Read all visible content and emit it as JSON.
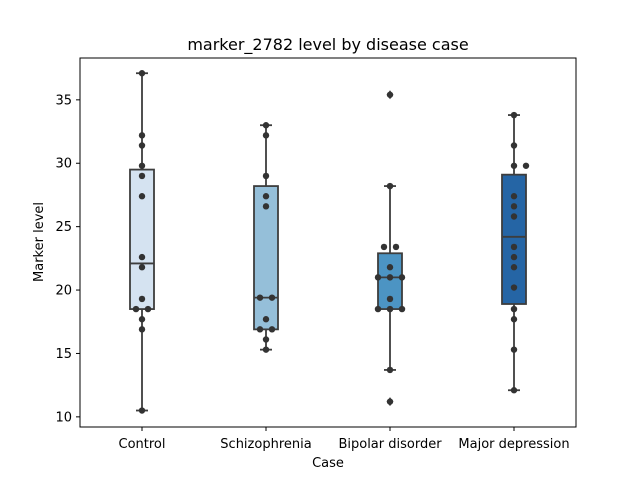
{
  "chart_data": {
    "type": "box",
    "title": "marker_2782 level by disease case",
    "xlabel": "Case",
    "ylabel": "Marker level",
    "ylim": [
      9.2,
      38.3
    ],
    "yticks": [
      10,
      15,
      20,
      25,
      30,
      35
    ],
    "categories": [
      "Control",
      "Schizophrenia",
      "Bipolar disorder",
      "Major depression"
    ],
    "colors": [
      "#d5e3f1",
      "#95bfd9",
      "#4c94c3",
      "#2565a5"
    ],
    "grid": false,
    "legend": "none",
    "boxes": [
      {
        "name": "Control",
        "whisker_low": 10.5,
        "q1": 18.5,
        "median": 22.1,
        "q3": 29.5,
        "whisker_high": 37.1,
        "outliers": []
      },
      {
        "name": "Schizophrenia",
        "whisker_low": 15.3,
        "q1": 16.9,
        "median": 19.4,
        "q3": 28.2,
        "whisker_high": 33.0,
        "outliers": []
      },
      {
        "name": "Bipolar disorder",
        "whisker_low": 13.7,
        "q1": 18.5,
        "median": 21.0,
        "q3": 22.9,
        "whisker_high": 28.2,
        "outliers": [
          35.4,
          11.2
        ]
      },
      {
        "name": "Major depression",
        "whisker_low": 12.1,
        "q1": 18.9,
        "median": 24.2,
        "q3": 29.1,
        "whisker_high": 33.8,
        "outliers": []
      }
    ],
    "points": [
      {
        "cat": 0,
        "values": [
          37.1,
          32.2,
          31.4,
          29.8,
          29.0,
          27.4,
          22.6,
          21.8,
          19.3,
          18.5,
          18.5,
          17.7,
          16.9,
          10.5
        ],
        "offsets": [
          0,
          0,
          0,
          0,
          0,
          0,
          0,
          0,
          0,
          -1,
          1,
          0,
          0,
          0
        ]
      },
      {
        "cat": 1,
        "values": [
          33.0,
          32.2,
          29.0,
          27.4,
          26.6,
          19.4,
          19.4,
          17.7,
          16.9,
          16.9,
          16.1,
          15.3
        ],
        "offsets": [
          0,
          0,
          0,
          0,
          0,
          -1,
          1,
          0,
          -1,
          1,
          0,
          0
        ]
      },
      {
        "cat": 2,
        "values": [
          35.4,
          28.2,
          23.4,
          23.4,
          21.8,
          21.0,
          21.0,
          21.0,
          19.3,
          18.5,
          18.5,
          18.5,
          13.7,
          11.2
        ],
        "offsets": [
          0,
          0,
          -1,
          1,
          0,
          -2,
          0,
          2,
          0,
          -2,
          0,
          2,
          0,
          0
        ]
      },
      {
        "cat": 3,
        "values": [
          33.8,
          31.4,
          29.8,
          29.8,
          27.4,
          26.6,
          25.8,
          23.4,
          22.6,
          21.8,
          20.2,
          18.5,
          17.7,
          15.3,
          12.1
        ],
        "offsets": [
          0,
          0,
          0,
          2,
          0,
          0,
          0,
          0,
          0,
          0,
          0,
          0,
          0,
          0,
          0
        ]
      }
    ]
  }
}
